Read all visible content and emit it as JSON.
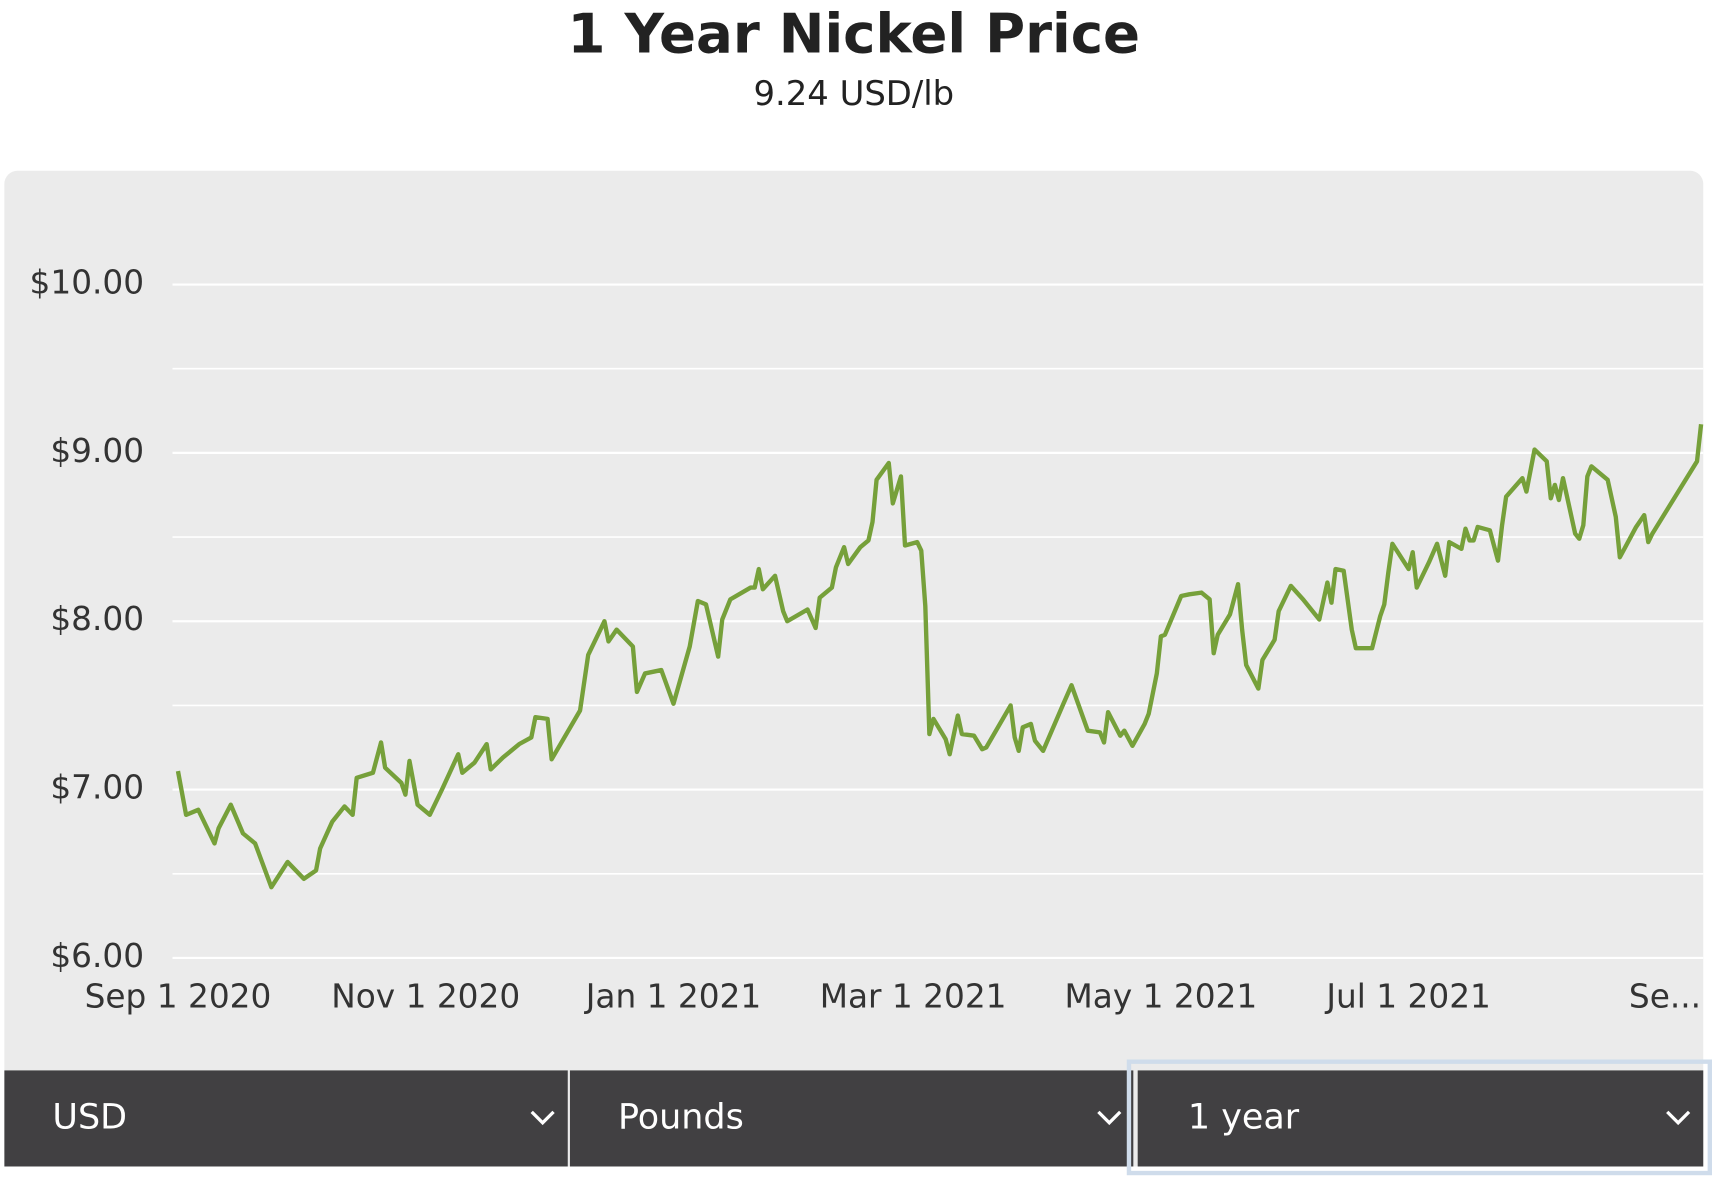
{
  "chart_data": {
    "type": "line",
    "title": "1 Year Nickel Price",
    "subtitle": "9.24 USD/lb",
    "color": "#76a03a",
    "grid": true,
    "x": [
      "2020-09-01",
      "2020-09-03",
      "2020-09-06",
      "2020-09-10",
      "2020-09-11",
      "2020-09-14",
      "2020-09-17",
      "2020-09-20",
      "2020-09-24",
      "2020-09-28",
      "2020-10-02",
      "2020-10-05",
      "2020-10-06",
      "2020-10-09",
      "2020-10-12",
      "2020-10-14",
      "2020-10-15",
      "2020-10-19",
      "2020-10-21",
      "2020-10-22",
      "2020-10-26",
      "2020-10-27",
      "2020-10-28",
      "2020-10-30",
      "2020-11-02",
      "2020-11-05",
      "2020-11-09",
      "2020-11-10",
      "2020-11-13",
      "2020-11-16",
      "2020-11-17",
      "2020-11-20",
      "2020-11-24",
      "2020-11-27",
      "2020-11-28",
      "2020-12-01",
      "2020-12-02",
      "2020-12-09",
      "2020-12-11",
      "2020-12-14",
      "2020-12-15",
      "2020-12-16",
      "2020-12-18",
      "2020-12-22",
      "2020-12-23",
      "2020-12-25",
      "2020-12-29",
      "2021-01-01",
      "2021-01-05",
      "2021-01-07",
      "2021-01-09",
      "2021-01-12",
      "2021-01-13",
      "2021-01-15",
      "2021-01-20",
      "2021-01-21",
      "2021-01-22",
      "2021-01-23",
      "2021-01-26",
      "2021-01-28",
      "2021-01-29",
      "2021-02-03",
      "2021-02-05",
      "2021-02-06",
      "2021-02-09",
      "2021-02-10",
      "2021-02-12",
      "2021-02-13",
      "2021-02-16",
      "2021-02-18",
      "2021-02-19",
      "2021-02-20",
      "2021-02-23",
      "2021-02-24",
      "2021-02-26",
      "2021-02-27",
      "2021-03-02",
      "2021-03-03",
      "2021-03-04",
      "2021-03-05",
      "2021-03-06",
      "2021-03-09",
      "2021-03-10",
      "2021-03-12",
      "2021-03-13",
      "2021-03-16",
      "2021-03-18",
      "2021-03-19",
      "2021-03-25",
      "2021-03-26",
      "2021-03-27",
      "2021-03-28",
      "2021-03-30",
      "2021-03-31",
      "2021-04-02",
      "2021-04-07",
      "2021-04-09",
      "2021-04-13",
      "2021-04-16",
      "2021-04-17",
      "2021-04-18",
      "2021-04-21",
      "2021-04-22",
      "2021-04-24",
      "2021-04-27",
      "2021-04-28",
      "2021-04-30",
      "2021-05-01",
      "2021-05-02",
      "2021-05-06",
      "2021-05-08",
      "2021-05-11",
      "2021-05-13",
      "2021-05-14",
      "2021-05-15",
      "2021-05-18",
      "2021-05-20",
      "2021-05-21",
      "2021-05-22",
      "2021-05-25",
      "2021-05-26",
      "2021-05-29",
      "2021-05-30",
      "2021-06-02",
      "2021-06-05",
      "2021-06-09",
      "2021-06-11",
      "2021-06-12",
      "2021-06-13",
      "2021-06-15",
      "2021-06-17",
      "2021-06-18",
      "2021-06-22",
      "2021-06-24",
      "2021-06-25",
      "2021-06-26",
      "2021-06-27",
      "2021-07-01",
      "2021-07-02",
      "2021-07-03",
      "2021-07-06",
      "2021-07-08",
      "2021-07-10",
      "2021-07-11",
      "2021-07-14",
      "2021-07-15",
      "2021-07-16",
      "2021-07-17",
      "2021-07-18",
      "2021-07-21",
      "2021-07-23",
      "2021-07-24",
      "2021-07-25",
      "2021-07-29",
      "2021-07-30",
      "2021-08-01",
      "2021-08-04",
      "2021-08-05",
      "2021-08-06",
      "2021-08-07",
      "2021-08-08",
      "2021-08-11",
      "2021-08-12",
      "2021-08-13",
      "2021-08-14",
      "2021-08-15",
      "2021-08-19",
      "2021-08-21",
      "2021-08-22",
      "2021-08-26",
      "2021-08-28",
      "2021-08-29",
      "2021-08-30",
      "2021-09-10",
      "2021-09-11"
    ],
    "values": [
      7.11,
      6.85,
      6.88,
      6.68,
      6.77,
      6.91,
      6.74,
      6.68,
      6.42,
      6.57,
      6.47,
      6.52,
      6.65,
      6.81,
      6.9,
      6.85,
      7.07,
      7.1,
      7.28,
      7.13,
      7.04,
      6.97,
      7.17,
      6.91,
      6.85,
      7.0,
      7.21,
      7.1,
      7.16,
      7.27,
      7.12,
      7.19,
      7.27,
      7.31,
      7.43,
      7.42,
      7.18,
      7.47,
      7.8,
      7.95,
      8.0,
      7.88,
      7.95,
      7.85,
      7.58,
      7.69,
      7.71,
      7.51,
      7.85,
      8.12,
      8.1,
      7.79,
      8.01,
      8.13,
      8.2,
      8.2,
      8.31,
      8.19,
      8.27,
      8.06,
      8.0,
      8.07,
      7.96,
      8.14,
      8.2,
      8.32,
      8.44,
      8.34,
      8.44,
      8.48,
      8.59,
      8.84,
      8.94,
      8.7,
      8.86,
      8.45,
      8.47,
      8.42,
      8.09,
      7.33,
      7.42,
      7.3,
      7.21,
      7.44,
      7.33,
      7.32,
      7.24,
      7.25,
      7.5,
      7.31,
      7.23,
      7.37,
      7.39,
      7.29,
      7.23,
      7.51,
      7.62,
      7.35,
      7.34,
      7.28,
      7.46,
      7.32,
      7.35,
      7.26,
      7.39,
      7.45,
      7.69,
      7.91,
      7.92,
      8.15,
      8.16,
      8.17,
      8.13,
      7.81,
      7.92,
      8.04,
      8.22,
      7.95,
      7.74,
      7.6,
      7.77,
      7.89,
      8.06,
      8.21,
      8.13,
      8.01,
      8.23,
      8.11,
      8.31,
      8.3,
      7.95,
      7.84,
      7.84,
      8.03,
      8.1,
      8.29,
      8.46,
      8.31,
      8.41,
      8.2,
      8.35,
      8.46,
      8.27,
      8.47,
      8.43,
      8.55,
      8.48,
      8.48,
      8.56,
      8.54,
      8.36,
      8.57,
      8.74,
      8.85,
      8.77,
      9.02,
      8.95,
      8.73,
      8.81,
      8.72,
      8.85,
      8.52,
      8.49,
      8.57,
      8.86,
      8.92,
      8.84,
      8.62,
      8.38,
      8.56,
      8.63,
      8.47,
      8.52,
      8.95,
      9.17
    ],
    "xlim": [
      "2020-09-01",
      "2021-09-11"
    ],
    "xticks": [
      {
        "value": "2020-09-01",
        "label": "Sep 1 2020"
      },
      {
        "value": "2020-11-01",
        "label": "Nov 1 2020"
      },
      {
        "value": "2021-01-01",
        "label": "Jan 1 2021"
      },
      {
        "value": "2021-03-01",
        "label": "Mar 1 2021"
      },
      {
        "value": "2021-05-01",
        "label": "May 1 2021"
      },
      {
        "value": "2021-07-01",
        "label": "Jul 1 2021"
      },
      {
        "value": "2021-09-01",
        "label": "Se..."
      }
    ],
    "ylim": [
      6,
      10.65
    ],
    "yticks": [
      {
        "value": 6,
        "label": "$6.00"
      },
      {
        "value": 7,
        "label": "$7.00"
      },
      {
        "value": 8,
        "label": "$8.00"
      },
      {
        "value": 9,
        "label": "$9.00"
      },
      {
        "value": 10,
        "label": "$10.00"
      }
    ],
    "minor_yticks": [
      6.5,
      7.5,
      8.5,
      9.5
    ]
  },
  "controls": [
    "USD",
    "Pounds",
    "1 year"
  ]
}
